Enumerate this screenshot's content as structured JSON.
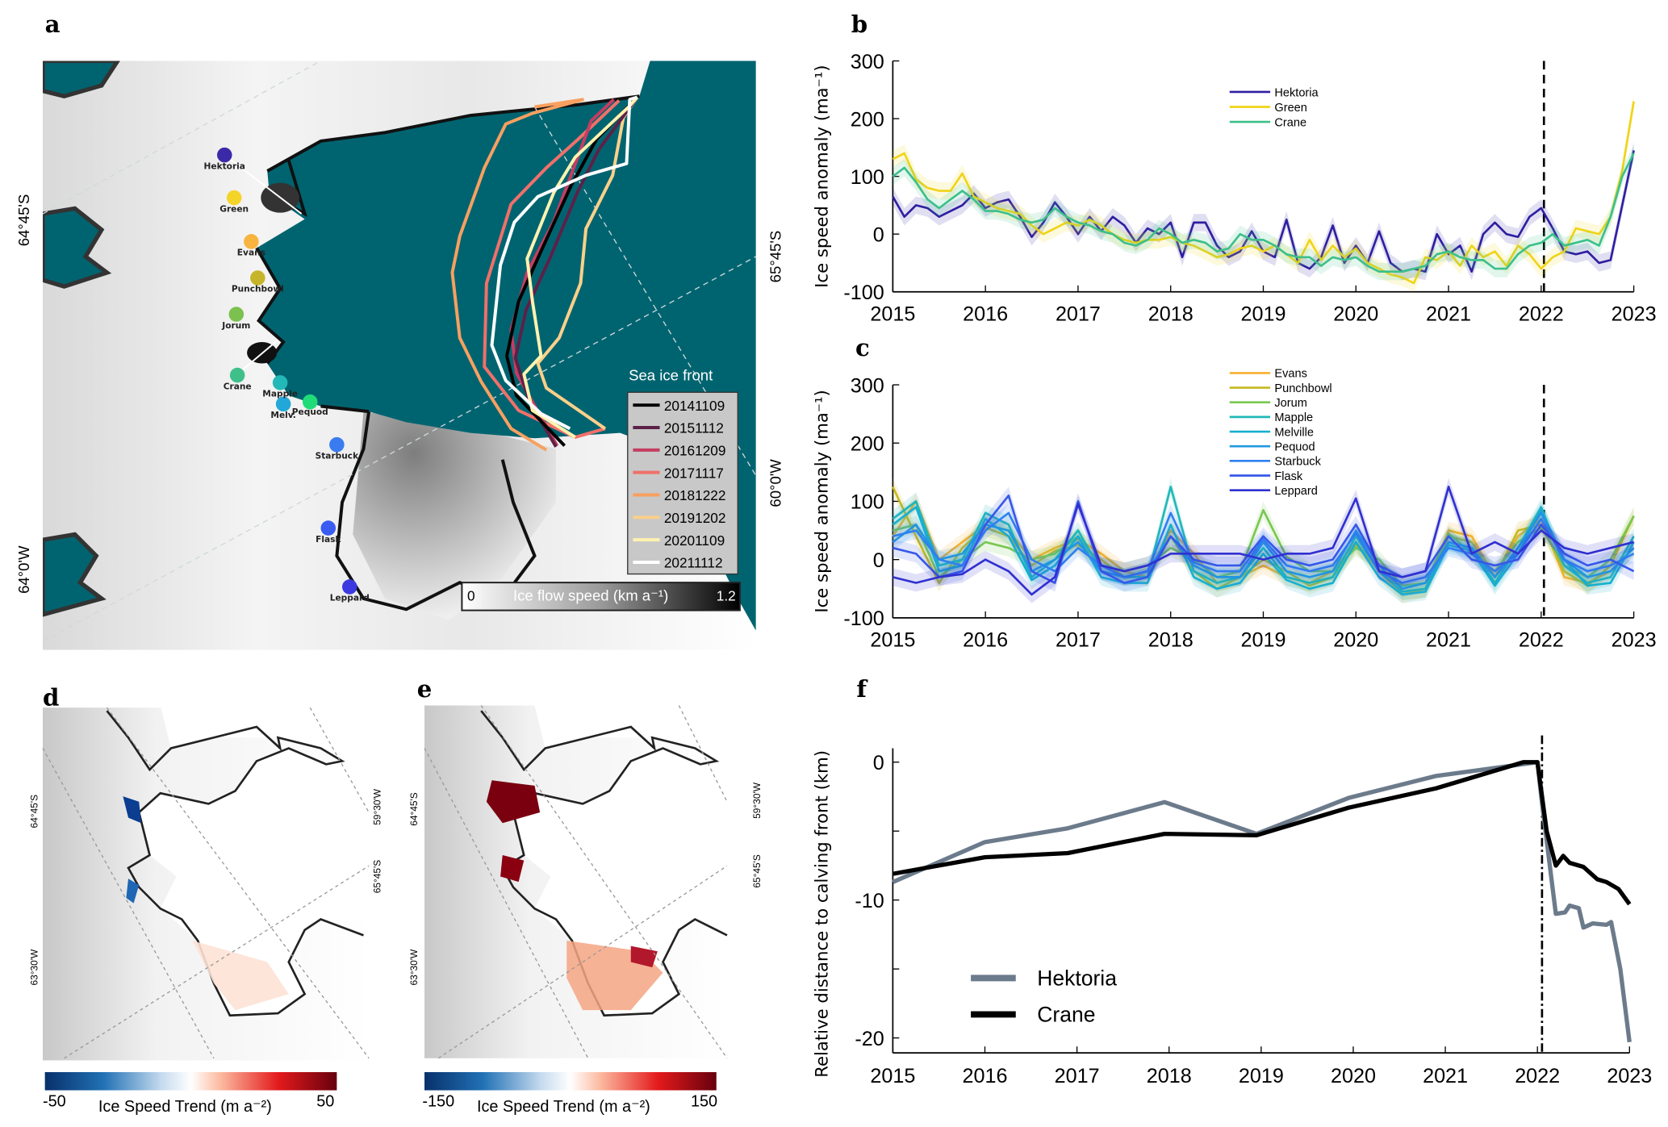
{
  "panels": {
    "a": "a",
    "b": "b",
    "c": "c",
    "d": "d",
    "e": "e",
    "f": "f"
  },
  "map_a": {
    "lat_labels": [
      "64°45'S",
      "64°0'W",
      "65°45'S",
      "60°0'W"
    ],
    "sites": [
      {
        "name": "Hektoria",
        "color": "#3b2aa8"
      },
      {
        "name": "Green",
        "color": "#f5d42a"
      },
      {
        "name": "Evans",
        "color": "#f7b43e"
      },
      {
        "name": "Punchbowl",
        "color": "#c6b52a"
      },
      {
        "name": "Jorum",
        "color": "#7cc04f"
      },
      {
        "name": "Crane",
        "color": "#3fbf8a"
      },
      {
        "name": "Mapple",
        "color": "#22b8b8"
      },
      {
        "name": "Melv.",
        "color": "#22a8d8"
      },
      {
        "name": "Pequod",
        "color": "#1fdc78"
      },
      {
        "name": "Starbuck",
        "color": "#3a7cf0"
      },
      {
        "name": "Flask",
        "color": "#3a5cf0"
      },
      {
        "name": "Leppard",
        "color": "#3a3ae0"
      }
    ],
    "ocean_color": "#006470",
    "sea_ice_front": {
      "title": "Sea ice front",
      "entries": [
        {
          "date": "20141109",
          "color": "#000000"
        },
        {
          "date": "20151112",
          "color": "#5c2148"
        },
        {
          "date": "20161209",
          "color": "#c43e62"
        },
        {
          "date": "20171117",
          "color": "#f0706a"
        },
        {
          "date": "20181222",
          "color": "#f8a060"
        },
        {
          "date": "20191202",
          "color": "#fcd08a"
        },
        {
          "date": "20201109",
          "color": "#fff2b0"
        },
        {
          "date": "20211112",
          "color": "#ffffff"
        }
      ]
    },
    "colorbar": {
      "min": "0",
      "max": "1.2",
      "label": "Ice flow speed (km a⁻¹)"
    }
  },
  "map_d": {
    "lat_labels": [
      "64°45'S",
      "63°30'W",
      "59°30'W",
      "65°45'S"
    ],
    "colorbar": {
      "min": "-50",
      "max": "50",
      "label": "Ice Speed Trend (m a⁻²)"
    }
  },
  "map_e": {
    "lat_labels": [
      "64°45'S",
      "63°30'W",
      "59°30'W",
      "65°45'S"
    ],
    "colorbar": {
      "min": "-150",
      "max": "150",
      "label": "Ice Speed Trend (m a⁻²)"
    }
  },
  "chart_data": [
    {
      "id": "b",
      "type": "line",
      "ylabel": "Ice speed anomaly (ma⁻¹)",
      "xlim": [
        2015,
        2023
      ],
      "ylim": [
        -100,
        300
      ],
      "xticks": [
        "2015",
        "2016",
        "2017",
        "2018",
        "2019",
        "2020",
        "2021",
        "2022",
        "2023"
      ],
      "yticks": [
        "300",
        "200",
        "100",
        "0",
        "-100"
      ],
      "vline": 2022.03,
      "legend": "top-center",
      "band": 15,
      "x_start": 2015,
      "x_step": 0.125,
      "series": [
        {
          "name": "Hektoria",
          "color": "#2e1fa0",
          "values": [
            65,
            30,
            50,
            45,
            30,
            40,
            50,
            70,
            45,
            55,
            60,
            30,
            -5,
            20,
            55,
            30,
            0,
            30,
            5,
            30,
            15,
            -15,
            10,
            0,
            20,
            -40,
            20,
            20,
            -20,
            -40,
            -30,
            5,
            -30,
            -40,
            25,
            -50,
            -60,
            -40,
            15,
            -50,
            -20,
            -50,
            5,
            -50,
            -65,
            -60,
            -65,
            0,
            -35,
            -20,
            -65,
            0,
            20,
            0,
            -5,
            30,
            45,
            10,
            -30,
            -35,
            -30,
            -50,
            -45,
            50,
            145
          ]
        },
        {
          "name": "Green",
          "color": "#f0d418",
          "values": [
            130,
            140,
            95,
            80,
            75,
            75,
            105,
            65,
            55,
            45,
            40,
            35,
            15,
            0,
            10,
            20,
            15,
            25,
            15,
            0,
            -10,
            -15,
            -10,
            -10,
            -5,
            -15,
            -20,
            -30,
            -40,
            -35,
            -25,
            -20,
            -30,
            -20,
            -35,
            -50,
            -10,
            -45,
            -20,
            -40,
            -25,
            -50,
            -60,
            -70,
            -75,
            -85,
            -40,
            -45,
            -30,
            -55,
            -20,
            -40,
            -30,
            -55,
            -20,
            -35,
            -60,
            -40,
            -30,
            10,
            5,
            0,
            30,
            110,
            230
          ]
        },
        {
          "name": "Crane",
          "color": "#3cc08a",
          "values": [
            100,
            115,
            90,
            60,
            45,
            60,
            75,
            60,
            40,
            40,
            35,
            25,
            20,
            25,
            45,
            30,
            20,
            15,
            5,
            0,
            -15,
            -20,
            -10,
            10,
            0,
            -15,
            -10,
            -15,
            -30,
            -25,
            0,
            -10,
            -10,
            -20,
            -35,
            -40,
            -40,
            -55,
            -40,
            -45,
            -40,
            -55,
            -65,
            -65,
            -65,
            -60,
            -55,
            -35,
            -30,
            -40,
            -45,
            -45,
            -60,
            -60,
            -35,
            -20,
            -15,
            0,
            -20,
            -15,
            -10,
            -20,
            30,
            100,
            140
          ]
        }
      ]
    },
    {
      "id": "c",
      "type": "line",
      "ylabel": "Ice speed anomaly (ma⁻¹)",
      "xlim": [
        2015,
        2023
      ],
      "ylim": [
        -100,
        300
      ],
      "xticks": [
        "2015",
        "2016",
        "2017",
        "2018",
        "2019",
        "2020",
        "2021",
        "2022",
        "2023"
      ],
      "yticks": [
        "300",
        "200",
        "100",
        "0",
        "-100"
      ],
      "vline": 2022.03,
      "legend": "top-center",
      "band": 15,
      "x_start": 2015,
      "x_step": 0.25,
      "series": [
        {
          "name": "Evans",
          "color": "#f8b030",
          "values": [
            40,
            100,
            0,
            30,
            60,
            50,
            0,
            20,
            35,
            10,
            -20,
            -30,
            50,
            10,
            -40,
            -30,
            -10,
            -30,
            -40,
            -20,
            30,
            -20,
            -60,
            -50,
            50,
            40,
            -30,
            40,
            70,
            -30,
            -40,
            -20,
            20
          ]
        },
        {
          "name": "Punchbowl",
          "color": "#c8b820",
          "values": [
            125,
            40,
            -40,
            20,
            55,
            40,
            -10,
            15,
            25,
            0,
            -30,
            -20,
            40,
            -20,
            -50,
            -30,
            0,
            -20,
            -45,
            -30,
            25,
            -10,
            -55,
            -50,
            40,
            30,
            -30,
            50,
            60,
            -20,
            -45,
            -10,
            75
          ]
        },
        {
          "name": "Jorum",
          "color": "#78c850",
          "values": [
            50,
            60,
            -30,
            0,
            30,
            20,
            0,
            10,
            40,
            -10,
            -20,
            -10,
            20,
            0,
            -30,
            -20,
            85,
            5,
            -20,
            -20,
            20,
            0,
            -45,
            -40,
            45,
            10,
            -20,
            30,
            55,
            -10,
            -30,
            0,
            75
          ]
        },
        {
          "name": "Mapple",
          "color": "#20b8b8",
          "values": [
            70,
            100,
            -10,
            0,
            80,
            60,
            -30,
            0,
            50,
            -20,
            -30,
            -30,
            125,
            -20,
            -40,
            -30,
            20,
            -30,
            -40,
            -30,
            40,
            -20,
            -55,
            -50,
            30,
            20,
            -40,
            20,
            90,
            -10,
            -40,
            -30,
            40
          ]
        },
        {
          "name": "Melville",
          "color": "#18b0d0",
          "values": [
            60,
            90,
            -20,
            -10,
            70,
            40,
            -35,
            -10,
            40,
            -30,
            -40,
            -40,
            60,
            -30,
            -50,
            -40,
            10,
            -35,
            -50,
            -40,
            30,
            -30,
            -60,
            -55,
            25,
            15,
            -45,
            10,
            85,
            0,
            -45,
            -40,
            30
          ]
        },
        {
          "name": "Pequod",
          "color": "#2098e0",
          "values": [
            30,
            60,
            0,
            10,
            60,
            50,
            -20,
            0,
            30,
            -20,
            -30,
            -20,
            40,
            -10,
            -30,
            -30,
            30,
            -20,
            -30,
            -20,
            50,
            -10,
            -50,
            -40,
            30,
            20,
            -30,
            20,
            80,
            0,
            -30,
            -20,
            20
          ]
        },
        {
          "name": "Starbuck",
          "color": "#3080f0",
          "values": [
            40,
            50,
            0,
            -10,
            50,
            80,
            0,
            -20,
            20,
            -10,
            -30,
            -20,
            80,
            -5,
            -20,
            -20,
            35,
            -10,
            -20,
            -10,
            45,
            -20,
            -40,
            -30,
            20,
            10,
            -20,
            10,
            70,
            0,
            -20,
            -10,
            10
          ]
        },
        {
          "name": "Flask",
          "color": "#3858e8",
          "values": [
            20,
            10,
            -30,
            -20,
            60,
            110,
            -20,
            -40,
            100,
            -20,
            -40,
            -30,
            40,
            0,
            -10,
            -10,
            40,
            0,
            -10,
            0,
            60,
            -10,
            -30,
            -20,
            40,
            0,
            -10,
            0,
            60,
            10,
            -10,
            0,
            -20
          ]
        },
        {
          "name": "Leppard",
          "color": "#3030d0",
          "values": [
            -30,
            -40,
            -30,
            -25,
            0,
            -20,
            -60,
            -30,
            95,
            -10,
            -20,
            -10,
            10,
            10,
            10,
            10,
            0,
            10,
            10,
            20,
            105,
            -20,
            -30,
            -20,
            125,
            10,
            30,
            10,
            50,
            20,
            10,
            20,
            30
          ]
        }
      ]
    },
    {
      "id": "f",
      "type": "line",
      "ylabel": "Relative distance to calving front (km)",
      "xlim": [
        2015,
        2023
      ],
      "ylim": [
        -21,
        1
      ],
      "xticks": [
        "2015",
        "2016",
        "2017",
        "2018",
        "2019",
        "2020",
        "2021",
        "2022",
        "2023"
      ],
      "yticks": [
        "0",
        "-10",
        "-20"
      ],
      "vline": 2022.05,
      "legend": "bottom-left",
      "series": [
        {
          "name": "Hektoria",
          "color": "#6c7b8b",
          "points": [
            [
              2015,
              -8.7
            ],
            [
              2016,
              -5.8
            ],
            [
              2016.9,
              -4.8
            ],
            [
              2017.95,
              -2.9
            ],
            [
              2018.95,
              -5.2
            ],
            [
              2019.95,
              -2.6
            ],
            [
              2020.9,
              -1.0
            ],
            [
              2022.0,
              0
            ],
            [
              2022.05,
              -3
            ],
            [
              2022.2,
              -11
            ],
            [
              2022.3,
              -10.9
            ],
            [
              2022.35,
              -10.4
            ],
            [
              2022.45,
              -10.6
            ],
            [
              2022.5,
              -12
            ],
            [
              2022.6,
              -11.7
            ],
            [
              2022.75,
              -11.8
            ],
            [
              2022.8,
              -11.6
            ],
            [
              2022.9,
              -15
            ],
            [
              2023.0,
              -20.3
            ]
          ]
        },
        {
          "name": "Crane",
          "color": "#000000",
          "points": [
            [
              2015,
              -8.1
            ],
            [
              2016,
              -6.9
            ],
            [
              2016.9,
              -6.6
            ],
            [
              2017.95,
              -5.2
            ],
            [
              2018.95,
              -5.3
            ],
            [
              2019.95,
              -3.3
            ],
            [
              2020.9,
              -1.9
            ],
            [
              2021.85,
              0
            ],
            [
              2022.0,
              0
            ],
            [
              2022.1,
              -5
            ],
            [
              2022.2,
              -7.5
            ],
            [
              2022.28,
              -6.8
            ],
            [
              2022.35,
              -7.3
            ],
            [
              2022.5,
              -7.6
            ],
            [
              2022.65,
              -8.5
            ],
            [
              2022.75,
              -8.7
            ],
            [
              2022.88,
              -9.2
            ],
            [
              2023,
              -10.3
            ]
          ]
        }
      ]
    }
  ]
}
